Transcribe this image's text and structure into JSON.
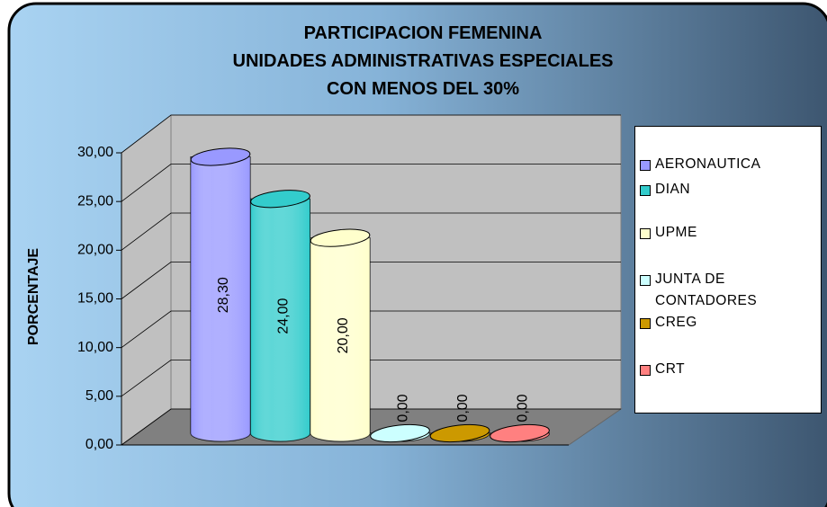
{
  "chart_data": {
    "type": "bar3d",
    "title": "PARTICIPACION FEMENINA\nUNIDADES ADMINISTRATIVAS ESPECIALES\nCON MENOS DEL 30%",
    "y_label": "PORCENTAJE",
    "ylim": [
      0,
      30
    ],
    "yticks": [
      {
        "value": 0,
        "label": "0,00"
      },
      {
        "value": 5,
        "label": "5,00"
      },
      {
        "value": 10,
        "label": "10,00"
      },
      {
        "value": 15,
        "label": "15,00"
      },
      {
        "value": 20,
        "label": "20,00"
      },
      {
        "value": 25,
        "label": "25,00"
      },
      {
        "value": 30,
        "label": "30,00"
      }
    ],
    "grid": true,
    "legend": "right",
    "series": [
      {
        "name": "AERONAUTICA",
        "color": "#9999ff",
        "values": [
          28.3
        ],
        "value_labels": [
          "28,30"
        ]
      },
      {
        "name": "DIAN",
        "color": "#33cccc",
        "values": [
          24
        ],
        "value_labels": [
          "24,00"
        ]
      },
      {
        "name": "UPME",
        "color": "#ffffcc",
        "values": [
          20
        ],
        "value_labels": [
          "20,00"
        ]
      },
      {
        "name": "JUNTA DE CONTADORES",
        "color": "#ccffff",
        "values": [
          0
        ],
        "value_labels": [
          "0,00"
        ]
      },
      {
        "name": "CREG",
        "color": "#cc9900",
        "values": [
          0
        ],
        "value_labels": [
          "0,00"
        ]
      },
      {
        "name": "CRT",
        "color": "#ff8080",
        "values": [
          0
        ],
        "value_labels": [
          "0,00"
        ]
      }
    ]
  }
}
